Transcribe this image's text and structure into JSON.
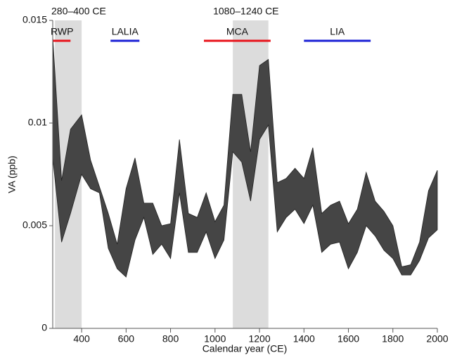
{
  "chart_data": {
    "type": "band",
    "x_label": "Calendar year (CE)",
    "y_label": "VA (ppb)",
    "xlim": [
      270,
      2000
    ],
    "xticks": [
      400,
      600,
      800,
      1000,
      1200,
      1400,
      1600,
      1800,
      2000
    ],
    "ylim": [
      0,
      0.015
    ],
    "yticks": [
      0,
      0.005,
      0.01,
      0.015
    ],
    "color": "#454545",
    "x": [
      270,
      310,
      350,
      400,
      440,
      480,
      520,
      560,
      600,
      640,
      680,
      720,
      760,
      800,
      840,
      880,
      920,
      960,
      1000,
      1040,
      1080,
      1120,
      1160,
      1200,
      1240,
      1280,
      1320,
      1360,
      1400,
      1440,
      1480,
      1520,
      1560,
      1600,
      1640,
      1680,
      1720,
      1760,
      1800,
      1840,
      1880,
      1920,
      1960,
      2000
    ],
    "upper": [
      0.0142,
      0.0072,
      0.0097,
      0.0104,
      0.0082,
      0.0069,
      0.0056,
      0.0041,
      0.0068,
      0.0083,
      0.0061,
      0.0061,
      0.005,
      0.0051,
      0.0092,
      0.0056,
      0.0054,
      0.0066,
      0.0052,
      0.006,
      0.0114,
      0.0114,
      0.0086,
      0.0128,
      0.0131,
      0.0071,
      0.0073,
      0.0078,
      0.0073,
      0.0088,
      0.0056,
      0.006,
      0.0062,
      0.0051,
      0.0058,
      0.0076,
      0.0062,
      0.0057,
      0.005,
      0.003,
      0.0031,
      0.0042,
      0.0067,
      0.0077
    ],
    "lower": [
      0.0083,
      0.0042,
      0.0056,
      0.0075,
      0.0068,
      0.0066,
      0.0039,
      0.0029,
      0.0025,
      0.0043,
      0.0054,
      0.0036,
      0.0041,
      0.0034,
      0.0066,
      0.0037,
      0.0037,
      0.0047,
      0.0034,
      0.0043,
      0.0086,
      0.0081,
      0.0062,
      0.0092,
      0.0099,
      0.0047,
      0.0054,
      0.0058,
      0.0051,
      0.006,
      0.0037,
      0.0041,
      0.0042,
      0.0029,
      0.0037,
      0.005,
      0.0045,
      0.0038,
      0.0034,
      0.0026,
      0.0026,
      0.0033,
      0.0044,
      0.0048
    ],
    "shaded": [
      {
        "start": 280,
        "end": 400,
        "label": "280–400 CE"
      },
      {
        "start": 1080,
        "end": 1240,
        "label": "1080–1240 CE"
      }
    ],
    "periods": [
      {
        "label": "RWP",
        "start": 270,
        "end": 350,
        "color": "#e8141c"
      },
      {
        "label": "LALIA",
        "start": 530,
        "end": 660,
        "color": "#1c22d6"
      },
      {
        "label": "MCA",
        "start": 950,
        "end": 1250,
        "color": "#e8141c"
      },
      {
        "label": "LIA",
        "start": 1400,
        "end": 1700,
        "color": "#1c22d6"
      }
    ]
  }
}
